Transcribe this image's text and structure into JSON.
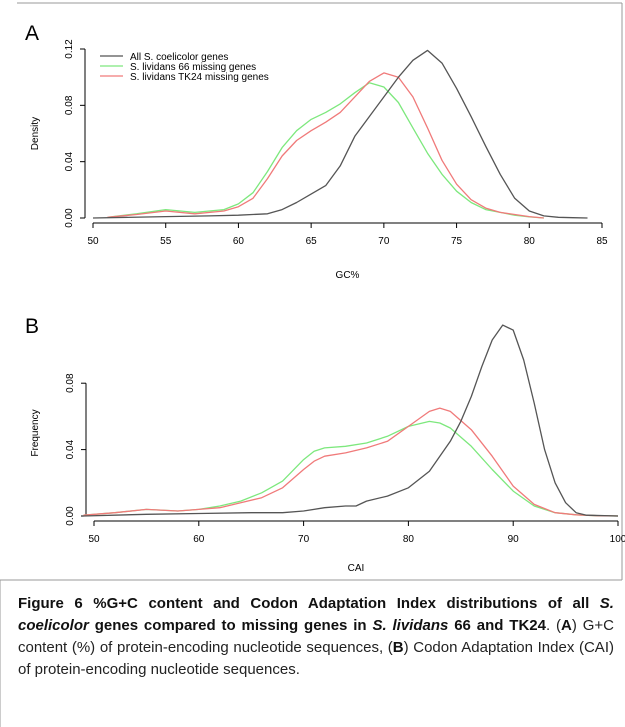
{
  "chart_data": [
    {
      "type": "line",
      "panel_label": "A",
      "title": "",
      "xlabel": "GC%",
      "ylabel": "Density",
      "xlim": [
        50,
        85
      ],
      "ylim": [
        0,
        0.12
      ],
      "xticks": [
        "50",
        "55",
        "60",
        "65",
        "70",
        "75",
        "80",
        "85"
      ],
      "yticks": [
        "0.00",
        "0.04",
        "0.08",
        "0.12"
      ],
      "legend_position": "top-left",
      "grid": false,
      "series": [
        {
          "name": "All S. coelicolor genes",
          "color": "#555555",
          "x": [
            50,
            55,
            58,
            60,
            62,
            63,
            64,
            65,
            66,
            67,
            68,
            69,
            70,
            71,
            72,
            73,
            74,
            75,
            76,
            77,
            78,
            79,
            80,
            81,
            82,
            83,
            84
          ],
          "y": [
            0,
            0.001,
            0.0015,
            0.002,
            0.003,
            0.006,
            0.011,
            0.017,
            0.023,
            0.037,
            0.058,
            0.072,
            0.086,
            0.1,
            0.112,
            0.119,
            0.11,
            0.092,
            0.072,
            0.051,
            0.031,
            0.014,
            0.005,
            0.0015,
            0.0005,
            0.0002,
            0
          ]
        },
        {
          "name": "S. lividans 66 missing genes",
          "color": "#7de87d",
          "x": [
            51,
            53,
            55,
            57,
            59,
            60,
            61,
            62,
            63,
            64,
            65,
            66,
            67,
            68,
            69,
            70,
            71,
            72,
            73,
            74,
            75,
            76,
            77,
            78,
            79,
            80,
            81
          ],
          "y": [
            0.0005,
            0.003,
            0.006,
            0.004,
            0.006,
            0.01,
            0.018,
            0.033,
            0.05,
            0.062,
            0.07,
            0.075,
            0.081,
            0.089,
            0.096,
            0.093,
            0.082,
            0.064,
            0.046,
            0.031,
            0.019,
            0.011,
            0.006,
            0.004,
            0.002,
            0.0008,
            0
          ]
        },
        {
          "name": "S. lividans TK24 missing genes",
          "color": "#f07a7a",
          "x": [
            51,
            53,
            55,
            57,
            59,
            60,
            61,
            62,
            63,
            64,
            65,
            66,
            67,
            68,
            69,
            70,
            71,
            72,
            73,
            74,
            75,
            76,
            77,
            78,
            79,
            80,
            81
          ],
          "y": [
            0.0005,
            0.0025,
            0.005,
            0.003,
            0.005,
            0.008,
            0.014,
            0.028,
            0.044,
            0.055,
            0.062,
            0.068,
            0.075,
            0.086,
            0.097,
            0.103,
            0.1,
            0.086,
            0.064,
            0.041,
            0.024,
            0.013,
            0.007,
            0.004,
            0.0025,
            0.001,
            0
          ]
        }
      ]
    },
    {
      "type": "line",
      "panel_label": "B",
      "title": "",
      "xlabel": "CAI",
      "ylabel": "Frequency",
      "xlim": [
        50,
        100
      ],
      "ylim": [
        0,
        0.1
      ],
      "xticks": [
        "50",
        "60",
        "70",
        "80",
        "90",
        "100"
      ],
      "yticks": [
        "0.00",
        "0.04",
        "0.08"
      ],
      "legend_position": "none",
      "grid": false,
      "series": [
        {
          "name": "All S. coelicolor genes",
          "color": "#555555",
          "x": [
            49,
            55,
            60,
            65,
            68,
            70,
            72,
            74,
            75,
            76,
            78,
            80,
            82,
            84,
            85,
            86,
            87,
            88,
            89,
            90,
            91,
            92,
            93,
            94,
            95,
            96,
            97,
            100
          ],
          "y": [
            0,
            0.001,
            0.0015,
            0.002,
            0.002,
            0.003,
            0.005,
            0.006,
            0.006,
            0.009,
            0.012,
            0.017,
            0.027,
            0.045,
            0.057,
            0.072,
            0.09,
            0.106,
            0.115,
            0.112,
            0.094,
            0.068,
            0.04,
            0.02,
            0.008,
            0.002,
            0.0005,
            0
          ]
        },
        {
          "name": "S. lividans 66 missing genes",
          "color": "#7de87d",
          "x": [
            49,
            52,
            55,
            58,
            60,
            62,
            64,
            66,
            68,
            70,
            71,
            72,
            74,
            76,
            78,
            80,
            82,
            83,
            84,
            86,
            88,
            90,
            92,
            94,
            96,
            98,
            100
          ],
          "y": [
            0.0005,
            0.002,
            0.004,
            0.003,
            0.004,
            0.006,
            0.009,
            0.014,
            0.021,
            0.034,
            0.039,
            0.041,
            0.042,
            0.044,
            0.048,
            0.054,
            0.057,
            0.056,
            0.053,
            0.042,
            0.028,
            0.015,
            0.006,
            0.002,
            0.0007,
            0.0002,
            0
          ]
        },
        {
          "name": "S. lividans TK24 missing genes",
          "color": "#f07a7a",
          "x": [
            49,
            52,
            55,
            58,
            60,
            62,
            64,
            66,
            68,
            70,
            71,
            72,
            74,
            76,
            78,
            80,
            82,
            83,
            84,
            86,
            88,
            90,
            92,
            94,
            96,
            98,
            100
          ],
          "y": [
            0.0005,
            0.002,
            0.004,
            0.003,
            0.004,
            0.005,
            0.008,
            0.011,
            0.017,
            0.028,
            0.033,
            0.036,
            0.038,
            0.041,
            0.045,
            0.054,
            0.063,
            0.065,
            0.063,
            0.052,
            0.036,
            0.018,
            0.007,
            0.002,
            0.0007,
            0.0002,
            0
          ]
        }
      ]
    }
  ],
  "caption": {
    "figure_label": "Figure 6",
    "title_part1": " %G+C content and Codon Adaptation Index distributions of all ",
    "title_species1": "S. coelicolor",
    "title_part2": " genes compared to missing genes in ",
    "title_species2": "S. lividans",
    "title_part3": " 66 and TK24",
    "body_part0": ". (",
    "label_a": "A",
    "body_part1": ") G+C content (%) of protein-encoding nucleotide sequences, (",
    "label_b": "B",
    "body_part2": ") Codon Adaptation Index (CAI) of protein-encoding nucleotide sequences."
  },
  "colors": {
    "coelicolor": "#555555",
    "lividans66": "#7de87d",
    "tk24": "#f07a7a",
    "frame": "#999999"
  }
}
